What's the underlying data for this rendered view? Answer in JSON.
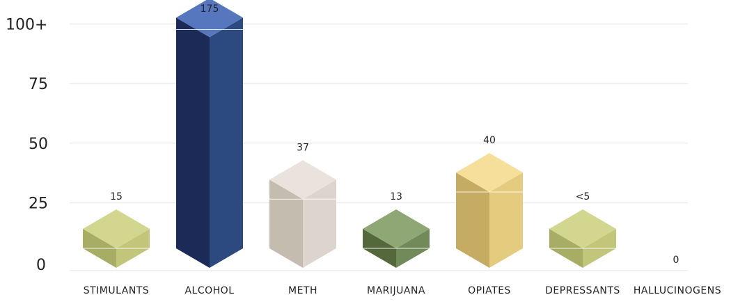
{
  "chart_data": {
    "type": "bar",
    "categories": [
      "STIMULANTS",
      "ALCOHOL",
      "METH",
      "MARIJUANA",
      "OPIATES",
      "DEPRESSANTS",
      "HALLUCINOGENS"
    ],
    "values": [
      15,
      175,
      37,
      13,
      40,
      5,
      0
    ],
    "value_labels": [
      "15",
      "175",
      "37",
      "13",
      "40",
      "<5",
      "0"
    ],
    "y_ticks": [
      0,
      25,
      50,
      75,
      100
    ],
    "y_tick_labels": [
      "0",
      "25",
      "50",
      "75",
      "100+"
    ],
    "ylim": [
      0,
      100
    ],
    "axis_cap_note": "values above 100 are drawn as 100+",
    "grid": true,
    "colors": [
      {
        "top": "#d3d68e",
        "left": "#a7ad64",
        "right": "#c1c67a"
      },
      {
        "top": "#5677be",
        "left": "#1b2a57",
        "right": "#2d4a80"
      },
      {
        "top": "#eae3dd",
        "left": "#c5bcb0",
        "right": "#ddd5cd"
      },
      {
        "top": "#8ea774",
        "left": "#55683b",
        "right": "#72895a"
      },
      {
        "top": "#f6df9a",
        "left": "#c6ab62",
        "right": "#e4cb7e"
      },
      {
        "top": "#d3d68e",
        "left": "#a7ad64",
        "right": "#c1c67a"
      },
      {
        "top": "#d3d68e",
        "left": "#a7ad64",
        "right": "#c1c67a"
      }
    ]
  }
}
